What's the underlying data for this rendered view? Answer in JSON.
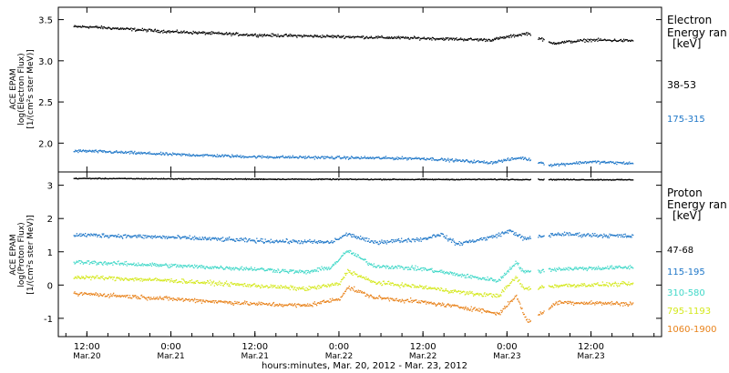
{
  "chart_data": [
    {
      "type": "scatter",
      "panel": "electron",
      "ylabel_lines": [
        "ACE EPAM",
        "log(Electron Flux)",
        "[1/(cm²s ster MeV)]"
      ],
      "y_log10": true,
      "ylim": [
        1.65,
        3.65
      ],
      "yticks": [
        2.0,
        2.5,
        3.0,
        3.5
      ],
      "ytick_labels": [
        "2.0",
        "2.5",
        "3.0",
        "3.5"
      ],
      "legend_title": [
        "Electron",
        "Energy ran",
        "[keV]"
      ],
      "series": [
        {
          "name": "38-53",
          "color": "#000000",
          "profile": [
            [
              0,
              3.42
            ],
            [
              0.5,
              3.36
            ],
            [
              1.0,
              3.32
            ],
            [
              1.5,
              3.3
            ],
            [
              2.0,
              3.28
            ],
            [
              2.4,
              3.26
            ],
            [
              2.62,
              3.34
            ],
            [
              2.76,
              3.22
            ],
            [
              3.0,
              3.26
            ],
            [
              3.25,
              3.25
            ]
          ]
        },
        {
          "name": "175-315",
          "color": "#1f77c8",
          "profile": [
            [
              0,
              1.91
            ],
            [
              0.5,
              1.87
            ],
            [
              1.0,
              1.84
            ],
            [
              1.5,
              1.83
            ],
            [
              2.0,
              1.82
            ],
            [
              2.4,
              1.77
            ],
            [
              2.58,
              1.83
            ],
            [
              2.76,
              1.74
            ],
            [
              3.0,
              1.78
            ],
            [
              3.25,
              1.76
            ]
          ]
        }
      ]
    },
    {
      "type": "scatter",
      "panel": "proton",
      "ylabel_lines": [
        "ACE EPAM",
        "log(Proton Flux)",
        "[1/(cm²s ster MeV)]"
      ],
      "y_log10": true,
      "ylim": [
        -1.55,
        3.4
      ],
      "yticks": [
        -1,
        0,
        1,
        2,
        3
      ],
      "ytick_labels": [
        "-1",
        "0",
        "1",
        "2",
        "3"
      ],
      "legend_title": [
        "Proton",
        "Energy ran",
        "[keV]"
      ],
      "series": [
        {
          "name": "47-68",
          "color": "#000000",
          "profile": [
            [
              0,
              3.22
            ],
            [
              1.0,
              3.2
            ],
            [
              2.0,
              3.19
            ],
            [
              2.6,
              3.19
            ],
            [
              3.25,
              3.18
            ]
          ]
        },
        {
          "name": "115-195",
          "color": "#1f77c8",
          "profile": [
            [
              0,
              1.52
            ],
            [
              0.5,
              1.45
            ],
            [
              1.0,
              1.35
            ],
            [
              1.45,
              1.3
            ],
            [
              1.55,
              1.55
            ],
            [
              1.7,
              1.3
            ],
            [
              2.0,
              1.4
            ],
            [
              2.1,
              1.55
            ],
            [
              2.2,
              1.25
            ],
            [
              2.4,
              1.45
            ],
            [
              2.52,
              1.65
            ],
            [
              2.6,
              1.4
            ],
            [
              2.8,
              1.55
            ],
            [
              3.25,
              1.48
            ]
          ]
        },
        {
          "name": "310-580",
          "color": "#40d8c8",
          "profile": [
            [
              0,
              0.7
            ],
            [
              0.5,
              0.6
            ],
            [
              1.0,
              0.5
            ],
            [
              1.3,
              0.4
            ],
            [
              1.45,
              0.55
            ],
            [
              1.55,
              1.05
            ],
            [
              1.7,
              0.6
            ],
            [
              2.0,
              0.5
            ],
            [
              2.3,
              0.25
            ],
            [
              2.45,
              0.15
            ],
            [
              2.55,
              0.7
            ],
            [
              2.6,
              0.4
            ],
            [
              2.8,
              0.5
            ],
            [
              3.25,
              0.55
            ]
          ]
        },
        {
          "name": "795-1193",
          "color": "#d4e81c",
          "profile": [
            [
              0,
              0.25
            ],
            [
              0.5,
              0.15
            ],
            [
              1.0,
              0.0
            ],
            [
              1.3,
              -0.1
            ],
            [
              1.5,
              0.05
            ],
            [
              1.55,
              0.45
            ],
            [
              1.7,
              0.1
            ],
            [
              2.0,
              -0.05
            ],
            [
              2.3,
              -0.25
            ],
            [
              2.45,
              -0.3
            ],
            [
              2.55,
              0.25
            ],
            [
              2.6,
              -0.1
            ],
            [
              2.8,
              0.0
            ],
            [
              3.25,
              0.05
            ]
          ]
        },
        {
          "name": "1060-1900",
          "color": "#e8821a",
          "profile": [
            [
              0,
              -0.25
            ],
            [
              0.5,
              -0.4
            ],
            [
              1.0,
              -0.55
            ],
            [
              1.3,
              -0.6
            ],
            [
              1.5,
              -0.4
            ],
            [
              1.55,
              -0.05
            ],
            [
              1.7,
              -0.35
            ],
            [
              2.0,
              -0.5
            ],
            [
              2.3,
              -0.7
            ],
            [
              2.45,
              -0.85
            ],
            [
              2.55,
              -0.3
            ],
            [
              2.62,
              -1.1
            ],
            [
              2.8,
              -0.5
            ],
            [
              3.25,
              -0.55
            ]
          ]
        }
      ]
    }
  ],
  "x_axis": {
    "label": "hours:minutes, Mar. 20, 2012 - Mar. 23, 2012",
    "range_days": [
      -0.17,
      3.42
    ],
    "ticks": [
      {
        "day": 0.0,
        "time": "12:00",
        "date": "Mar.20"
      },
      {
        "day": 0.5,
        "time": "0:00",
        "date": "Mar.21"
      },
      {
        "day": 1.0,
        "time": "12:00",
        "date": "Mar.21"
      },
      {
        "day": 1.5,
        "time": "0:00",
        "date": "Mar.22"
      },
      {
        "day": 2.0,
        "time": "12:00",
        "date": "Mar.22"
      },
      {
        "day": 2.5,
        "time": "0:00",
        "date": "Mar.23"
      },
      {
        "day": 3.0,
        "time": "12:00",
        "date": "Mar.23"
      }
    ]
  }
}
